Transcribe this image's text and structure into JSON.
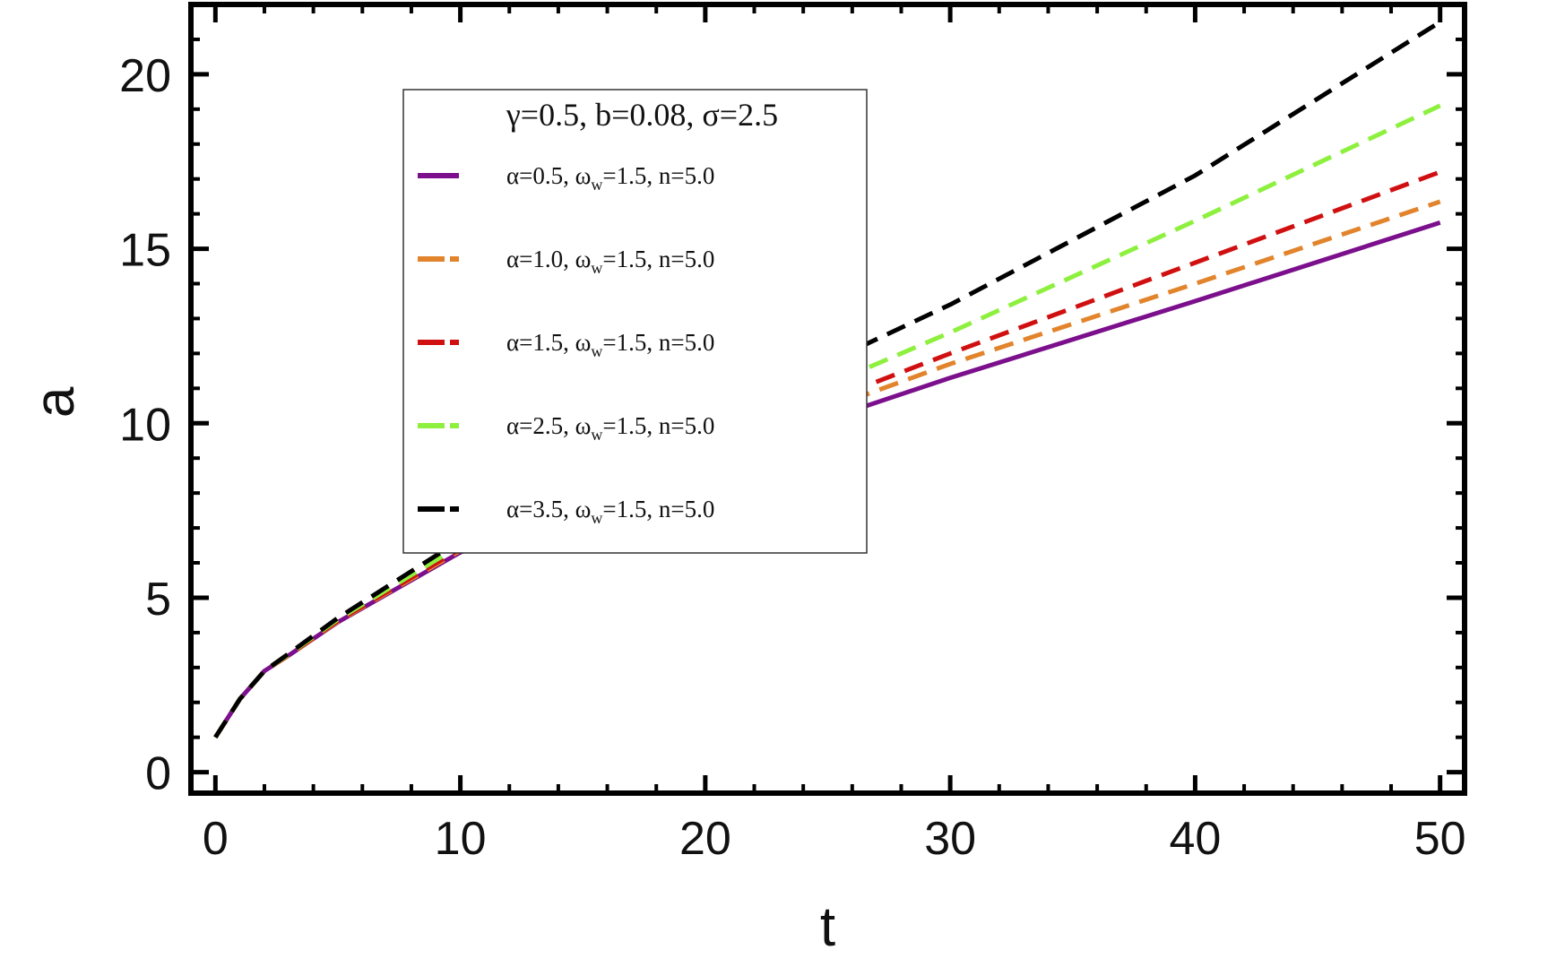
{
  "chart_data": {
    "type": "line",
    "title": "",
    "xlabel": "t",
    "ylabel": "a",
    "xlim": [
      -1,
      51
    ],
    "ylim": [
      -0.6,
      22
    ],
    "xticks": [
      0,
      10,
      20,
      30,
      40,
      50
    ],
    "yticks": [
      0,
      5,
      10,
      15,
      20
    ],
    "xtick_labels": [
      "0",
      "10",
      "20",
      "30",
      "40",
      "50"
    ],
    "ytick_labels": [
      "0",
      "5",
      "10",
      "15",
      "20"
    ],
    "grid": false,
    "legend_position": "upper-left",
    "legend_title": "γ=0.5, b=0.08, σ=2.5",
    "x": [
      0,
      1,
      2,
      3,
      5,
      10,
      20,
      30,
      40,
      50
    ],
    "series": [
      {
        "name": "α=0.5, ωw=1.5, n=5.0",
        "label_parts": [
          "α=0.5, ω",
          "w",
          "=1.5, n=5.0"
        ],
        "color": "#7b0f8c",
        "dash": "solid",
        "values": [
          1.0,
          2.1,
          2.9,
          3.35,
          4.3,
          6.3,
          8.95,
          11.3,
          13.5,
          15.75
        ]
      },
      {
        "name": "α=1.0, ωw=1.5, n=5.0",
        "label_parts": [
          "α=1.0, ω",
          "w",
          "=1.5, n=5.0"
        ],
        "color": "#e2842c",
        "dash": "dashed",
        "values": [
          1.0,
          2.1,
          2.9,
          3.35,
          4.32,
          6.35,
          9.15,
          11.7,
          14.0,
          16.35
        ]
      },
      {
        "name": "α=1.5, ωw=1.5, n=5.0",
        "label_parts": [
          "α=1.5, ω",
          "w",
          "=1.5, n=5.0"
        ],
        "color": "#d01010",
        "dash": "dashed",
        "values": [
          1.0,
          2.1,
          2.9,
          3.36,
          4.34,
          6.4,
          9.3,
          12.0,
          14.6,
          17.2
        ]
      },
      {
        "name": "α=2.5, ωw=1.5, n=5.0",
        "label_parts": [
          "α=2.5, ω",
          "w",
          "=1.5, n=5.0"
        ],
        "color": "#8ef03e",
        "dash": "dashed",
        "values": [
          1.0,
          2.1,
          2.9,
          3.38,
          4.38,
          6.5,
          9.6,
          12.6,
          15.8,
          19.1
        ]
      },
      {
        "name": "α=3.5, ωw=1.5, n=5.0",
        "label_parts": [
          "α=3.5, ω",
          "w",
          "=1.5, n=5.0"
        ],
        "color": "#000000",
        "dash": "dashed",
        "values": [
          1.0,
          2.1,
          2.9,
          3.4,
          4.42,
          6.65,
          10.1,
          13.4,
          17.1,
          21.5
        ]
      }
    ]
  }
}
